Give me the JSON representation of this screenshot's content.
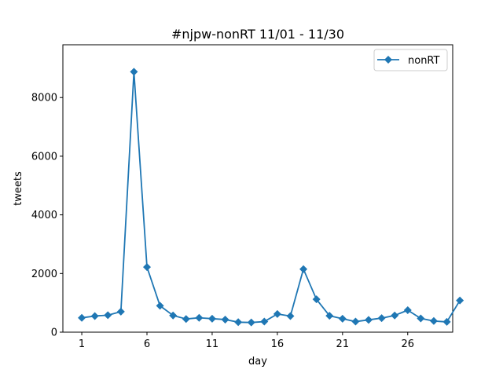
{
  "chart_data": {
    "type": "line",
    "title": "#njpw-nonRT 11/01 - 11/30",
    "xlabel": "day",
    "ylabel": "tweets",
    "xlim": [
      -0.45,
      29.45
    ],
    "ylim": [
      0,
      9800
    ],
    "x_ticks": [
      1,
      6,
      11,
      16,
      21,
      26
    ],
    "y_ticks": [
      0,
      2000,
      4000,
      6000,
      8000
    ],
    "grid": false,
    "legend_position": "top-right",
    "color": "#1f77b4",
    "marker": "diamond",
    "series": [
      {
        "name": "nonRT",
        "x": [
          1,
          2,
          3,
          4,
          5,
          6,
          7,
          8,
          9,
          10,
          11,
          12,
          13,
          14,
          15,
          16,
          17,
          18,
          19,
          20,
          21,
          22,
          23,
          24,
          25,
          26,
          27,
          28,
          29,
          30
        ],
        "values": [
          490,
          550,
          580,
          700,
          8880,
          2220,
          900,
          570,
          450,
          490,
          460,
          430,
          340,
          330,
          360,
          620,
          550,
          2150,
          1120,
          560,
          460,
          360,
          420,
          480,
          570,
          750,
          470,
          380,
          350,
          1080
        ]
      }
    ]
  }
}
